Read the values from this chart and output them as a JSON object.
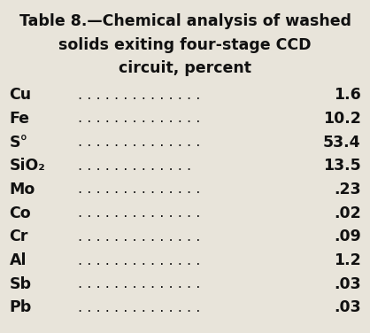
{
  "title_line1": "Table 8.—Chemical analysis of washed",
  "title_line2": "solids exiting four-stage CCD",
  "title_line3": "circuit, percent",
  "rows": [
    {
      "element": "Cu",
      "dots": ". . . . . . . . . . . . . .",
      "value": "1.6"
    },
    {
      "element": "Fe",
      "dots": ". . . . . . . . . . . . . .",
      "value": "10.2"
    },
    {
      "element": "S°",
      "dots": ". . . . . . . . . . . . . .",
      "value": "53.4"
    },
    {
      "element": "SiO₂",
      "dots": ". . . . . . . . . . . . .",
      "value": "13.5"
    },
    {
      "element": "Mo",
      "dots": ". . . . . . . . . . . . . .",
      "value": ".23"
    },
    {
      "element": "Co",
      "dots": ". . . . . . . . . . . . . .",
      "value": ".02"
    },
    {
      "element": "Cr",
      "dots": ". . . . . . . . . . . . . .",
      "value": ".09"
    },
    {
      "element": "Al",
      "dots": ". . . . . . . . . . . . . .",
      "value": "1.2"
    },
    {
      "element": "Sb",
      "dots": ". . . . . . . . . . . . . .",
      "value": ".03"
    },
    {
      "element": "Pb",
      "dots": ". . . . . . . . . . . . . .",
      "value": ".03"
    }
  ],
  "bg_color": "#e8e4da",
  "text_color": "#111111",
  "title_fontsize": 12.5,
  "row_fontsize": 12.5,
  "dots_fontsize": 11.5,
  "fig_width": 4.18,
  "fig_height": 3.76,
  "dpi": 100
}
